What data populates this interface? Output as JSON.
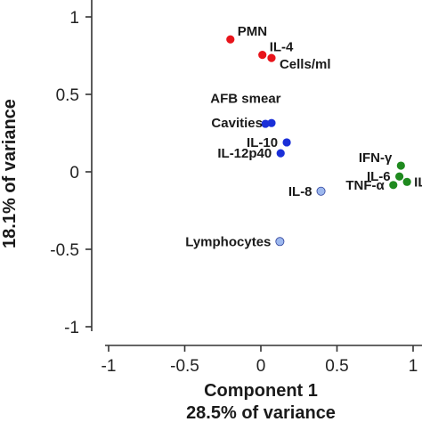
{
  "chart_data": {
    "type": "scatter",
    "xlabel": "Component 1",
    "xlabel_sub": "28.5% of variance",
    "ylabel": "18.1% of variance",
    "xlim": [
      -1,
      1
    ],
    "ylim": [
      -1,
      1
    ],
    "xticks": [
      "-1",
      "-0.5",
      "0",
      "0.5",
      "1"
    ],
    "yticks": [
      "-1",
      "-0.5",
      "0",
      "0.5",
      "1"
    ],
    "grid": false,
    "colors": {
      "red": "#e8141b",
      "blue": "#1a2fd8",
      "light_blue": "#9db8ee",
      "green": "#1f8a1f"
    },
    "points": [
      {
        "label": "PMN",
        "x": -0.2,
        "y": 0.855,
        "color": "red",
        "anchor": "right-up"
      },
      {
        "label": "IL-4",
        "x": 0.01,
        "y": 0.755,
        "color": "red",
        "anchor": "right-up"
      },
      {
        "label": "Cells/ml",
        "x": 0.07,
        "y": 0.735,
        "color": "red",
        "anchor": "right-down"
      },
      {
        "label": "",
        "x": 0.03,
        "y": 0.31,
        "color": "blue"
      },
      {
        "label": "Cavities",
        "x": 0.07,
        "y": 0.315,
        "color": "blue",
        "anchor": "left"
      },
      {
        "label": "IL-10",
        "x": 0.17,
        "y": 0.19,
        "color": "blue",
        "anchor": "left"
      },
      {
        "label": "IL-12p40",
        "x": 0.13,
        "y": 0.12,
        "color": "blue",
        "anchor": "left"
      },
      {
        "label": "IL-8",
        "x": 0.395,
        "y": -0.125,
        "color": "light_blue",
        "anchor": "left"
      },
      {
        "label": "Lymphocytes",
        "x": 0.125,
        "y": -0.45,
        "color": "light_blue",
        "anchor": "left"
      },
      {
        "label": "IFN-γ",
        "x": 0.92,
        "y": 0.04,
        "color": "green",
        "anchor": "left-up"
      },
      {
        "label": "IL-6",
        "x": 0.91,
        "y": -0.03,
        "color": "green",
        "anchor": "left"
      },
      {
        "label": "IL",
        "x": 0.96,
        "y": -0.065,
        "color": "green",
        "anchor": "right"
      },
      {
        "label": "TNF-α",
        "x": 0.87,
        "y": -0.085,
        "color": "green",
        "anchor": "left"
      }
    ],
    "annotations": [
      {
        "text": "AFB smear",
        "x": -0.1,
        "y": 0.445
      }
    ]
  }
}
